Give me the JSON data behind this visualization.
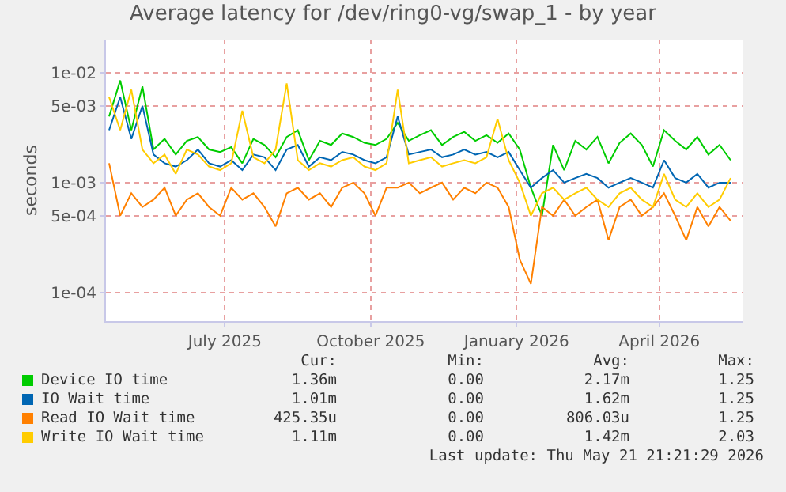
{
  "chart_data": {
    "type": "line",
    "title": "Average latency for /dev/ring0-vg/swap_1 - by year",
    "ylabel": "seconds",
    "x": [
      "2025-04-19",
      "2025-04-26",
      "2025-05-03",
      "2025-05-10",
      "2025-05-17",
      "2025-05-24",
      "2025-05-31",
      "2025-06-07",
      "2025-06-14",
      "2025-06-21",
      "2025-06-28",
      "2025-07-05",
      "2025-07-12",
      "2025-07-19",
      "2025-07-26",
      "2025-08-02",
      "2025-08-09",
      "2025-08-16",
      "2025-08-23",
      "2025-08-30",
      "2025-09-06",
      "2025-09-13",
      "2025-09-20",
      "2025-09-27",
      "2025-10-04",
      "2025-10-11",
      "2025-10-18",
      "2025-10-25",
      "2025-11-01",
      "2025-11-08",
      "2025-11-15",
      "2025-11-22",
      "2025-11-29",
      "2025-12-06",
      "2025-12-13",
      "2025-12-20",
      "2025-12-27",
      "2026-01-03",
      "2026-01-10",
      "2026-01-17",
      "2026-01-24",
      "2026-01-31",
      "2026-02-07",
      "2026-02-14",
      "2026-02-21",
      "2026-02-28",
      "2026-03-07",
      "2026-03-14",
      "2026-03-21",
      "2026-03-28",
      "2026-04-04",
      "2026-04-11",
      "2026-04-18",
      "2026-04-25",
      "2026-05-02",
      "2026-05-09",
      "2026-05-16"
    ],
    "series": [
      {
        "name": "Device IO time",
        "color": "#00cc00",
        "values": [
          0.004,
          0.0085,
          0.003,
          0.0075,
          0.002,
          0.0025,
          0.0018,
          0.0024,
          0.0026,
          0.002,
          0.0019,
          0.0021,
          0.0015,
          0.0025,
          0.0022,
          0.0017,
          0.0026,
          0.003,
          0.0016,
          0.0024,
          0.0022,
          0.0028,
          0.0026,
          0.0023,
          0.0022,
          0.0025,
          0.0035,
          0.0024,
          0.0027,
          0.003,
          0.0022,
          0.0026,
          0.0029,
          0.0024,
          0.0027,
          0.0023,
          0.0028,
          0.002,
          0.0009,
          0.0005,
          0.0022,
          0.0013,
          0.0024,
          0.002,
          0.0026,
          0.0015,
          0.0023,
          0.0028,
          0.0022,
          0.0014,
          0.003,
          0.0024,
          0.002,
          0.0026,
          0.0018,
          0.0022,
          0.0016
        ]
      },
      {
        "name": "IO Wait time",
        "color": "#0066b3",
        "values": [
          0.003,
          0.006,
          0.0025,
          0.005,
          0.0018,
          0.0015,
          0.0014,
          0.0016,
          0.002,
          0.0015,
          0.0014,
          0.0016,
          0.0013,
          0.0018,
          0.0017,
          0.0013,
          0.002,
          0.0022,
          0.0014,
          0.0017,
          0.0016,
          0.0019,
          0.0018,
          0.0016,
          0.0015,
          0.0017,
          0.004,
          0.0018,
          0.0019,
          0.002,
          0.0017,
          0.0018,
          0.002,
          0.0018,
          0.0019,
          0.0017,
          0.0019,
          0.0013,
          0.0009,
          0.0011,
          0.0013,
          0.001,
          0.0011,
          0.0012,
          0.0011,
          0.0009,
          0.001,
          0.0011,
          0.001,
          0.0009,
          0.0016,
          0.0011,
          0.001,
          0.0012,
          0.0009,
          0.001,
          0.001
        ]
      },
      {
        "name": "Read IO Wait time",
        "color": "#ff8000",
        "values": [
          0.0015,
          0.0005,
          0.0008,
          0.0006,
          0.0007,
          0.0009,
          0.0005,
          0.0007,
          0.0008,
          0.0006,
          0.0005,
          0.0009,
          0.0007,
          0.0008,
          0.0006,
          0.0004,
          0.0008,
          0.0009,
          0.0007,
          0.0008,
          0.0006,
          0.0009,
          0.001,
          0.0008,
          0.0005,
          0.0009,
          0.0009,
          0.001,
          0.0008,
          0.0009,
          0.001,
          0.0007,
          0.0009,
          0.0008,
          0.001,
          0.0009,
          0.0006,
          0.0002,
          0.00012,
          0.0006,
          0.0005,
          0.0007,
          0.0005,
          0.0006,
          0.0007,
          0.0003,
          0.0006,
          0.0007,
          0.0005,
          0.0006,
          0.0008,
          0.0005,
          0.0003,
          0.0006,
          0.0004,
          0.0006,
          0.00045
        ]
      },
      {
        "name": "Write IO Wait time",
        "color": "#ffcc00",
        "values": [
          0.006,
          0.003,
          0.007,
          0.002,
          0.0015,
          0.0018,
          0.0012,
          0.002,
          0.0018,
          0.0014,
          0.0013,
          0.0015,
          0.0045,
          0.0017,
          0.0015,
          0.002,
          0.008,
          0.0016,
          0.0013,
          0.0015,
          0.0014,
          0.0016,
          0.0017,
          0.0014,
          0.0013,
          0.0015,
          0.007,
          0.0015,
          0.0016,
          0.0017,
          0.0014,
          0.0015,
          0.0016,
          0.0015,
          0.0017,
          0.0038,
          0.0016,
          0.001,
          0.0005,
          0.0008,
          0.0009,
          0.0007,
          0.0008,
          0.0009,
          0.0007,
          0.0006,
          0.0008,
          0.0009,
          0.0007,
          0.0006,
          0.0012,
          0.0007,
          0.0006,
          0.0008,
          0.0006,
          0.0007,
          0.0011
        ]
      }
    ],
    "xlim": [
      "2025-04-17",
      "2026-05-24"
    ],
    "xticks": [
      {
        "value": "2025-07-01",
        "label": "July 2025"
      },
      {
        "value": "2025-10-01",
        "label": "October 2025"
      },
      {
        "value": "2026-01-01",
        "label": "January 2026"
      },
      {
        "value": "2026-04-01",
        "label": "April 2026"
      }
    ],
    "ylim": [
      5.5e-05,
      0.02
    ],
    "yticks": [
      {
        "value": 0.0001,
        "label": "1e-04"
      },
      {
        "value": 0.0005,
        "label": "5e-04"
      },
      {
        "value": 0.001,
        "label": "1e-03"
      },
      {
        "value": 0.005,
        "label": "5e-03"
      },
      {
        "value": 0.01,
        "label": "1e-02"
      }
    ],
    "log": true,
    "grid": true,
    "legend": "bottom",
    "marker": "none",
    "line_style": "solid",
    "annotations": [
      "Cur:",
      "Min:",
      "Avg:",
      "Max:",
      "1.36m",
      "0.00",
      "2.17m",
      "1.25",
      "1.01m",
      "0.00",
      "1.62m",
      "1.25",
      "425.35u",
      "0.00",
      "806.03u",
      "1.25",
      "1.11m",
      "0.00",
      "1.42m",
      "2.03",
      "Last update: Thu May 21 21:21:29 2026"
    ]
  }
}
